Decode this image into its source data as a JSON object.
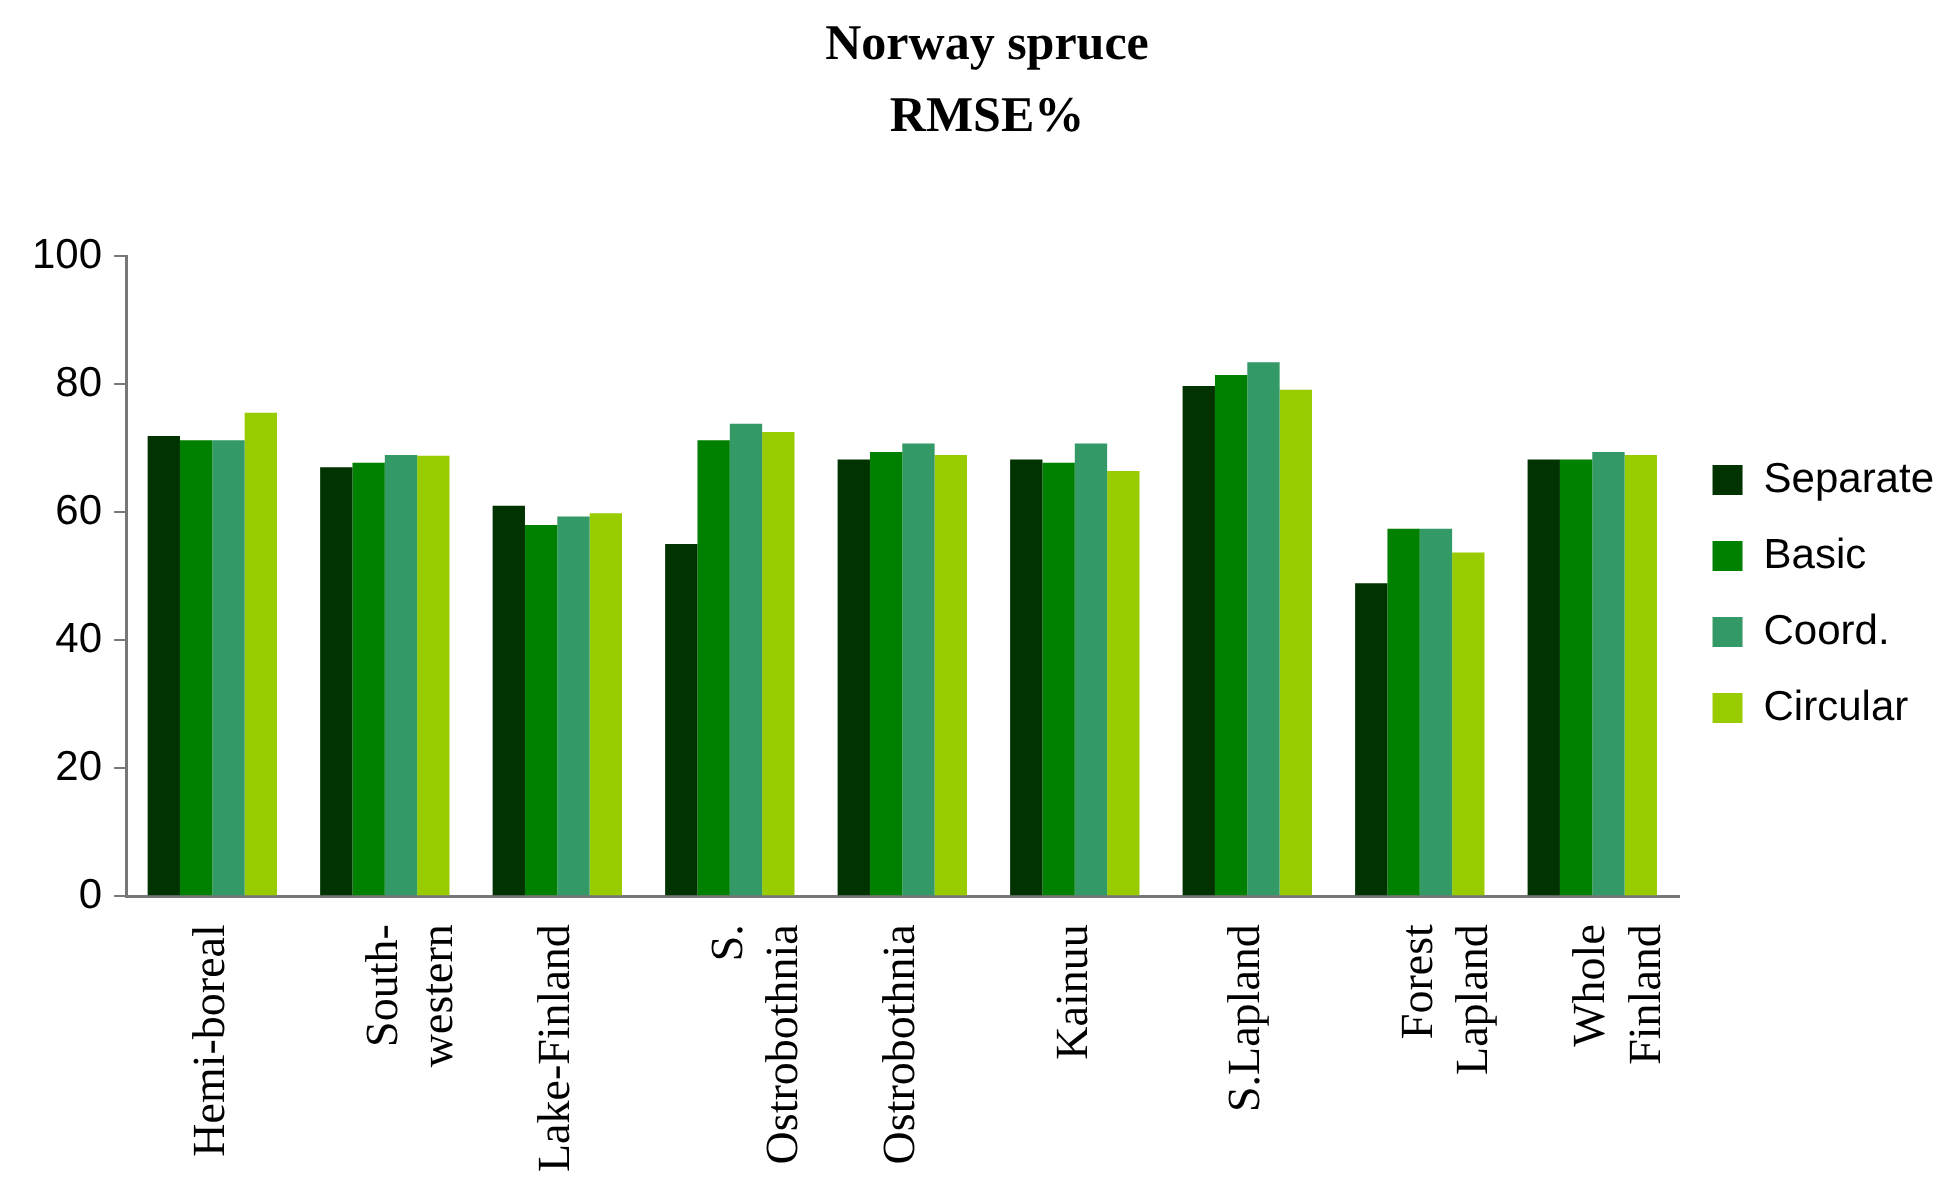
{
  "chart_data": {
    "type": "bar",
    "title": "Norway spruce",
    "subtitle": "RMSE%",
    "categories": [
      "Hemi-boreal",
      "South-western",
      "Lake-Finland",
      "S. Ostrobothnia",
      "Ostrobothnia",
      "Kainuu",
      "S.Lapland",
      "Forest Lapland",
      "Whole Finland"
    ],
    "series": [
      {
        "name": "Separate",
        "color": "#003300",
        "values": [
          71.9,
          67.0,
          61.0,
          55.0,
          68.2,
          68.2,
          79.7,
          48.9,
          68.2
        ]
      },
      {
        "name": "Basic",
        "color": "#008000",
        "values": [
          71.2,
          67.7,
          58.0,
          71.2,
          69.4,
          67.7,
          81.4,
          57.4,
          68.2
        ]
      },
      {
        "name": "Coord.",
        "color": "#339966",
        "values": [
          71.2,
          68.9,
          59.3,
          73.8,
          70.7,
          70.7,
          83.4,
          57.4,
          69.4
        ]
      },
      {
        "name": "Circular",
        "color": "#99cc00",
        "values": [
          75.5,
          68.8,
          59.8,
          72.5,
          68.9,
          66.4,
          79.1,
          53.7,
          68.9
        ]
      }
    ],
    "ylim": [
      0,
      100
    ],
    "yticks": [
      0,
      20,
      40,
      60,
      80,
      100
    ],
    "legend": "right"
  }
}
